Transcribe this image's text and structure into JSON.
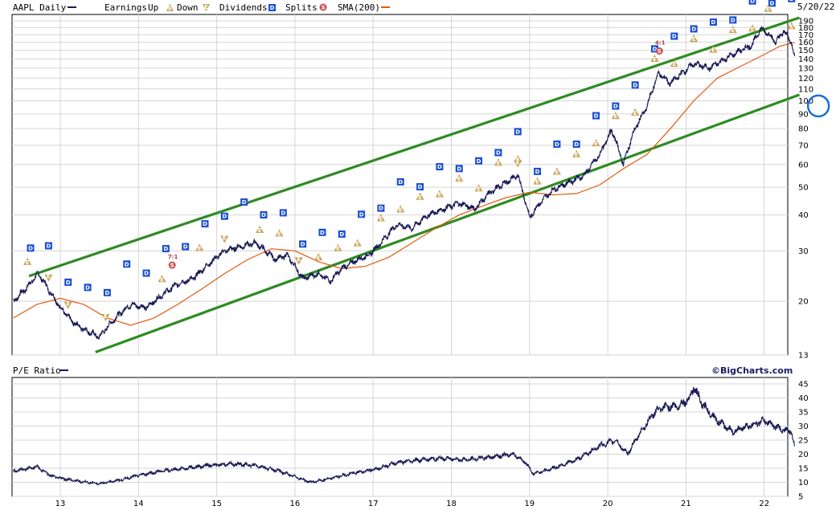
{
  "header": {
    "symbol_label": "AAPL Daily",
    "earnings_label": "Earnings",
    "up_label": "Up",
    "down_label": "Down",
    "dividends_label": "Dividends",
    "splits_label": "Splits",
    "sma_label": "SMA(200)",
    "date": "5/20/22"
  },
  "lower_panel": {
    "title": "P/E Ratio",
    "brand": "©BigCharts.com"
  },
  "colors": {
    "price": "#1a1a55",
    "sma": "#e05a10",
    "trend": "#2e8b22",
    "earn_up": "#c8a050",
    "dividend": "#1a4fd0",
    "split": "#c85050",
    "highlight_circle": "#1a6fd8",
    "grid": "#d4d4d4"
  },
  "chart_data": [
    {
      "type": "line",
      "title": "AAPL Daily",
      "y_scale": "log",
      "ylim": [
        13,
        190
      ],
      "y_ticks": [
        13,
        20,
        30,
        40,
        50,
        60,
        70,
        80,
        90,
        100,
        110,
        120,
        130,
        140,
        150,
        160,
        170,
        180,
        190
      ],
      "x_ticks": [
        "13",
        "14",
        "15",
        "16",
        "17",
        "18",
        "19",
        "20",
        "21",
        "22"
      ],
      "x_range": [
        2012.4,
        2022.39
      ],
      "series": [
        {
          "name": "AAPL Daily",
          "x": [
            2012.4,
            2012.55,
            2012.72,
            2012.85,
            2013.0,
            2013.15,
            2013.3,
            2013.5,
            2013.62,
            2013.75,
            2013.9,
            2014.1,
            2014.3,
            2014.5,
            2014.7,
            2014.9,
            2015.1,
            2015.3,
            2015.5,
            2015.62,
            2015.75,
            2015.9,
            2016.1,
            2016.3,
            2016.45,
            2016.6,
            2016.8,
            2016.95,
            2017.1,
            2017.3,
            2017.5,
            2017.7,
            2017.9,
            2018.1,
            2018.3,
            2018.5,
            2018.7,
            2018.85,
            2019.0,
            2019.1,
            2019.3,
            2019.5,
            2019.7,
            2019.9,
            2020.05,
            2020.2,
            2020.35,
            2020.5,
            2020.65,
            2020.8,
            2020.95,
            2021.1,
            2021.3,
            2021.5,
            2021.7,
            2021.85,
            2021.95,
            2022.05,
            2022.15,
            2022.25,
            2022.35,
            2022.39
          ],
          "values": [
            20,
            22,
            25,
            22,
            19,
            17,
            16,
            15,
            16.5,
            18,
            19.5,
            19,
            21,
            23,
            24,
            27,
            30,
            31,
            32,
            30,
            28,
            29,
            24,
            25,
            23.5,
            26,
            28,
            29,
            32,
            37,
            36,
            40,
            42,
            44,
            42,
            48,
            52,
            55,
            39,
            43,
            49,
            52,
            55,
            65,
            79,
            60,
            80,
            95,
            125,
            115,
            125,
            135,
            130,
            140,
            150,
            157,
            178,
            172,
            160,
            175,
            160,
            140
          ]
        },
        {
          "name": "SMA(200)",
          "x": [
            2012.4,
            2012.7,
            2013.0,
            2013.3,
            2013.6,
            2013.9,
            2014.2,
            2014.5,
            2014.8,
            2015.1,
            2015.4,
            2015.7,
            2016.0,
            2016.3,
            2016.6,
            2016.9,
            2017.2,
            2017.5,
            2017.8,
            2018.1,
            2018.4,
            2018.7,
            2019.0,
            2019.3,
            2019.6,
            2019.9,
            2020.2,
            2020.5,
            2020.8,
            2021.1,
            2021.4,
            2021.7,
            2022.0,
            2022.2,
            2022.39
          ],
          "values": [
            17.5,
            19.5,
            20.5,
            19.5,
            17.5,
            16.5,
            17.5,
            19.5,
            22,
            25,
            28,
            30.5,
            30,
            27.5,
            26,
            26.5,
            28.5,
            32,
            36,
            40,
            43,
            46,
            48,
            47,
            47.5,
            51,
            58,
            65,
            80,
            100,
            120,
            132,
            145,
            155,
            160
          ]
        }
      ],
      "earnings_up": [
        2012.58,
        2014.3,
        2014.78,
        2015.55,
        2015.8,
        2016.3,
        2016.55,
        2016.8,
        2017.1,
        2017.35,
        2017.6,
        2017.85,
        2018.1,
        2018.35,
        2018.6,
        2018.85,
        2019.1,
        2019.35,
        2019.6,
        2019.85,
        2020.1,
        2020.35,
        2020.6,
        2020.85,
        2021.1,
        2021.35,
        2021.6,
        2021.85,
        2022.05,
        2022.35
      ],
      "earnings_down": [
        2012.85,
        2013.1,
        2013.58,
        2015.1,
        2016.05,
        2018.85
      ],
      "dividends_x": [
        2012.62,
        2012.85,
        2013.1,
        2013.35,
        2013.6,
        2013.85,
        2014.1,
        2014.35,
        2014.6,
        2014.85,
        2015.1,
        2015.35,
        2015.6,
        2015.85,
        2016.1,
        2016.35,
        2016.6,
        2016.85,
        2017.1,
        2017.35,
        2017.6,
        2017.85,
        2018.1,
        2018.35,
        2018.6,
        2018.85,
        2019.1,
        2019.35,
        2019.6,
        2019.85,
        2020.1,
        2020.35,
        2020.6,
        2020.85,
        2021.1,
        2021.35,
        2021.6,
        2021.85,
        2022.1,
        2022.35
      ],
      "splits": [
        {
          "x": 2014.43,
          "label": "7:1"
        },
        {
          "x": 2020.66,
          "label": "4:1"
        }
      ],
      "trendlines": [
        {
          "x": [
            2012.6,
            2022.45
          ],
          "values": [
            24.5,
            195
          ]
        },
        {
          "x": [
            2013.45,
            2022.45
          ],
          "values": [
            13.3,
            105
          ]
        }
      ],
      "highlight": {
        "x": 2022.57,
        "value": 96
      }
    },
    {
      "type": "line",
      "title": "P/E Ratio",
      "ylim": [
        5,
        45
      ],
      "y_ticks": [
        5,
        10,
        15,
        20,
        25,
        30,
        35,
        40,
        45
      ],
      "x_ticks": [
        "13",
        "14",
        "15",
        "16",
        "17",
        "18",
        "19",
        "20",
        "21",
        "22"
      ],
      "series": [
        {
          "name": "P/E Ratio",
          "x": [
            2012.4,
            2012.7,
            2012.9,
            2013.2,
            2013.5,
            2013.8,
            2014.0,
            2014.3,
            2014.6,
            2014.9,
            2015.2,
            2015.5,
            2015.8,
            2016.0,
            2016.2,
            2016.4,
            2016.7,
            2017.0,
            2017.3,
            2017.6,
            2017.9,
            2018.2,
            2018.5,
            2018.8,
            2018.95,
            2019.05,
            2019.3,
            2019.6,
            2019.9,
            2020.1,
            2020.25,
            2020.4,
            2020.6,
            2020.75,
            2020.9,
            2021.05,
            2021.1,
            2021.2,
            2021.4,
            2021.6,
            2021.8,
            2022.0,
            2022.2,
            2022.35,
            2022.39
          ],
          "values": [
            14,
            15.5,
            12,
            10.5,
            9.5,
            11,
            12.5,
            14,
            15,
            16,
            16.5,
            16,
            14,
            12,
            10,
            11,
            13,
            14.5,
            17,
            18,
            18.5,
            18,
            19,
            20,
            17,
            13,
            15,
            18,
            23,
            25,
            20,
            27,
            35,
            37,
            37,
            40,
            44,
            38,
            32,
            28,
            30,
            32,
            29,
            28,
            22
          ]
        }
      ]
    }
  ]
}
